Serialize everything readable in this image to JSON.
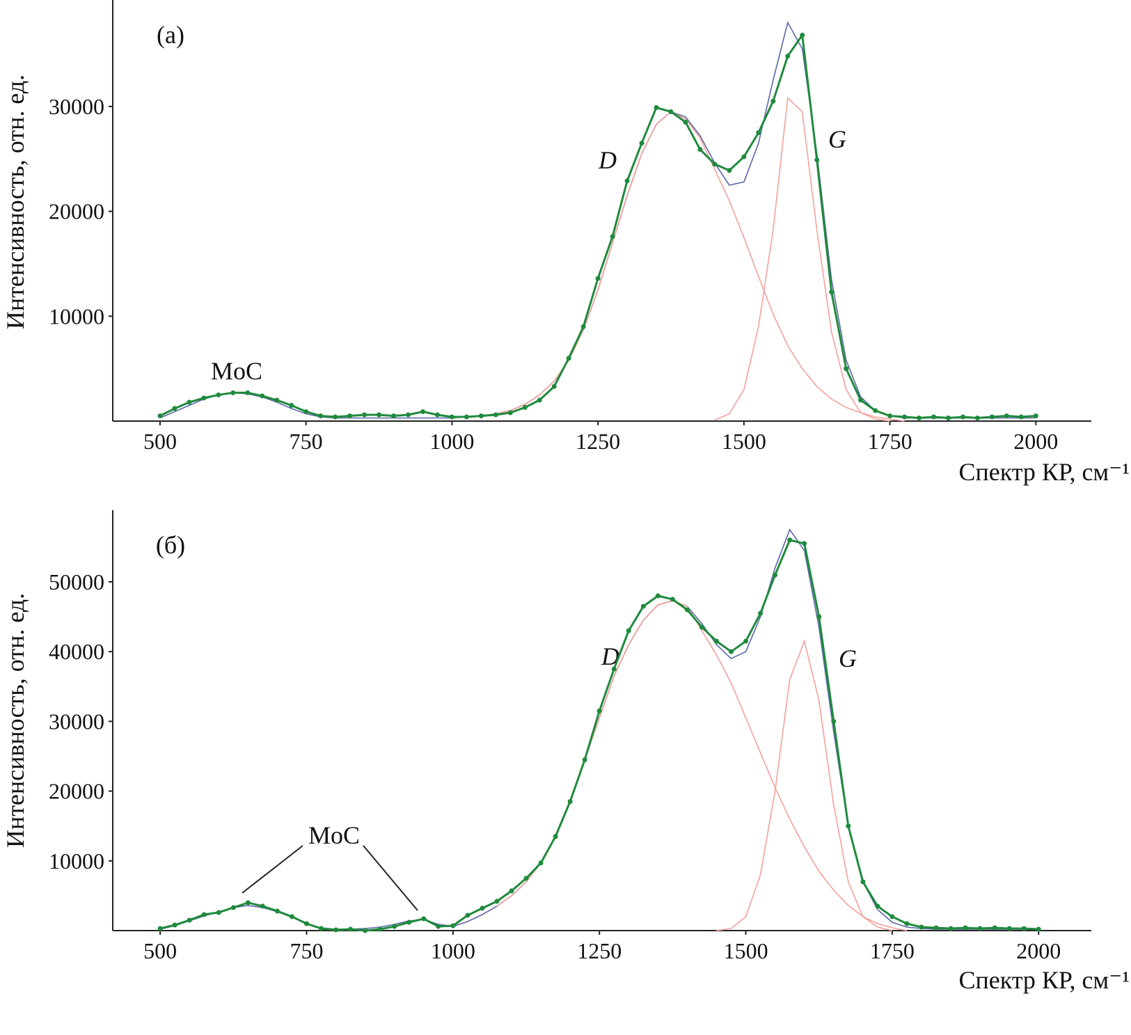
{
  "chart_data": [
    {
      "type": "line",
      "panel_label": "(а)",
      "xlabel": "Спектр КР, см⁻¹",
      "ylabel": "Интенсивность, отн. ед.",
      "annotations": [
        "D",
        "G",
        "MoC"
      ],
      "xlim": [
        419,
        2095
      ],
      "ylim": [
        0,
        40150
      ],
      "xticks": [
        500,
        750,
        1000,
        1250,
        1500,
        1750,
        2000
      ],
      "yticks": [
        10000,
        20000,
        30000
      ],
      "x": [
        500,
        525,
        550,
        575,
        600,
        625,
        650,
        675,
        700,
        725,
        750,
        775,
        800,
        825,
        850,
        875,
        900,
        925,
        950,
        975,
        1000,
        1025,
        1050,
        1075,
        1100,
        1125,
        1150,
        1175,
        1200,
        1225,
        1250,
        1275,
        1300,
        1325,
        1350,
        1375,
        1400,
        1425,
        1450,
        1475,
        1500,
        1525,
        1550,
        1575,
        1600,
        1625,
        1650,
        1675,
        1700,
        1725,
        1750,
        1775,
        1800,
        1825,
        1850,
        1875,
        1900,
        1925,
        1950,
        1975,
        2000
      ],
      "series": [
        {
          "color": "#5a66a8",
          "marker": false,
          "values": [
            300,
            900,
            1500,
            2100,
            2500,
            2700,
            2600,
            2300,
            1800,
            1200,
            700,
            400,
            300,
            300,
            300,
            300,
            300,
            300,
            300,
            300,
            300,
            400,
            500,
            700,
            1000,
            1600,
            2500,
            3800,
            5800,
            8700,
            12500,
            17000,
            21500,
            25500,
            28300,
            29500,
            29000,
            27200,
            24600,
            22500,
            22800,
            26500,
            32500,
            38000,
            35500,
            25500,
            13500,
            5800,
            2300,
            1000,
            500,
            300,
            300,
            300,
            300,
            300,
            300,
            300,
            300,
            300,
            300
          ]
        },
        {
          "color": "#f4a09a",
          "marker": false,
          "values": [
            null,
            null,
            null,
            null,
            null,
            null,
            null,
            null,
            null,
            null,
            null,
            null,
            null,
            null,
            null,
            null,
            null,
            null,
            null,
            null,
            null,
            null,
            null,
            700,
            1000,
            1600,
            2500,
            3800,
            5800,
            8700,
            12500,
            17000,
            21500,
            25500,
            28300,
            29500,
            28800,
            27000,
            24000,
            21000,
            17500,
            13800,
            10200,
            7200,
            5000,
            3300,
            2100,
            1300,
            800,
            400,
            200,
            0,
            null,
            null,
            null,
            null,
            null,
            null,
            null,
            null,
            null
          ]
        },
        {
          "color": "#f4a09a",
          "marker": false,
          "values": [
            null,
            null,
            null,
            null,
            null,
            null,
            null,
            null,
            null,
            null,
            null,
            null,
            null,
            null,
            null,
            null,
            null,
            null,
            null,
            null,
            null,
            null,
            null,
            null,
            null,
            null,
            null,
            null,
            null,
            null,
            null,
            null,
            null,
            null,
            null,
            null,
            null,
            null,
            100,
            700,
            3000,
            9000,
            18200,
            30800,
            29500,
            18200,
            8500,
            3000,
            800,
            200,
            0,
            null,
            null,
            null,
            null,
            null,
            null,
            null,
            null,
            null,
            null
          ]
        },
        {
          "color": "#1f8a3c",
          "marker": true,
          "values": [
            500,
            1200,
            1800,
            2200,
            2500,
            2700,
            2700,
            2400,
            2000,
            1500,
            900,
            500,
            400,
            500,
            600,
            600,
            500,
            600,
            900,
            600,
            400,
            400,
            500,
            600,
            800,
            1300,
            2000,
            3300,
            6000,
            9000,
            13600,
            17600,
            22900,
            26500,
            29900,
            29500,
            28500,
            25900,
            24500,
            23900,
            25200,
            27500,
            30500,
            34800,
            36800,
            24900,
            12300,
            5000,
            2000,
            1000,
            500,
            400,
            300,
            400,
            300,
            400,
            300,
            400,
            500,
            400,
            500
          ]
        }
      ]
    },
    {
      "type": "line",
      "panel_label": "(б)",
      "xlabel": "Спектр КР, см⁻¹",
      "ylabel": "Интенсивность, отн. ед.",
      "annotations": [
        "D",
        "G",
        "MoC"
      ],
      "xlim": [
        419,
        2090
      ],
      "ylim": [
        0,
        60280
      ],
      "xticks": [
        500,
        750,
        1000,
        1250,
        1500,
        1750,
        2000
      ],
      "yticks": [
        10000,
        20000,
        30000,
        40000,
        50000
      ],
      "x": [
        500,
        525,
        550,
        575,
        600,
        625,
        650,
        675,
        700,
        725,
        750,
        775,
        800,
        825,
        850,
        875,
        900,
        925,
        950,
        975,
        1000,
        1025,
        1050,
        1075,
        1100,
        1125,
        1150,
        1175,
        1200,
        1225,
        1250,
        1275,
        1300,
        1325,
        1350,
        1375,
        1400,
        1425,
        1450,
        1475,
        1500,
        1525,
        1550,
        1575,
        1600,
        1625,
        1650,
        1675,
        1700,
        1725,
        1750,
        1775,
        1800,
        1825,
        1850,
        1875,
        1900,
        1925,
        1950,
        1975,
        2000
      ],
      "series": [
        {
          "color": "#5a66a8",
          "marker": false,
          "values": [
            200,
            700,
            1400,
            2100,
            2700,
            3300,
            3600,
            3300,
            2700,
            1900,
            1000,
            400,
            200,
            200,
            300,
            500,
            900,
            1400,
            1600,
            900,
            600,
            1300,
            2300,
            3500,
            5000,
            7000,
            9700,
            13500,
            18500,
            24500,
            30500,
            36500,
            41000,
            44500,
            46700,
            47300,
            46500,
            44000,
            41000,
            39000,
            40000,
            45000,
            52000,
            57500,
            54500,
            43500,
            28500,
            15000,
            7000,
            3000,
            1200,
            500,
            300,
            200,
            200,
            200,
            200,
            200,
            200,
            200,
            200
          ]
        },
        {
          "color": "#f4a09a",
          "marker": false,
          "values": [
            null,
            null,
            null,
            null,
            null,
            null,
            null,
            null,
            null,
            null,
            null,
            null,
            null,
            null,
            null,
            null,
            null,
            null,
            null,
            null,
            null,
            null,
            null,
            3500,
            5000,
            7000,
            9700,
            13500,
            18500,
            24500,
            30500,
            36500,
            41000,
            44500,
            46700,
            47300,
            46500,
            43000,
            39500,
            35500,
            30500,
            25500,
            20500,
            16000,
            12000,
            8500,
            5800,
            3600,
            2000,
            1000,
            400,
            0,
            null,
            null,
            null,
            null,
            null,
            null,
            null,
            null,
            null
          ]
        },
        {
          "color": "#f4a09a",
          "marker": false,
          "values": [
            null,
            null,
            null,
            null,
            null,
            null,
            null,
            null,
            null,
            null,
            null,
            null,
            null,
            null,
            null,
            null,
            null,
            null,
            null,
            null,
            null,
            null,
            null,
            null,
            null,
            null,
            null,
            null,
            null,
            null,
            null,
            null,
            null,
            null,
            null,
            null,
            null,
            null,
            0,
            300,
            2000,
            8000,
            20000,
            36000,
            41500,
            33000,
            18000,
            7000,
            2000,
            500,
            0,
            null,
            null,
            null,
            null,
            null,
            null,
            null,
            null,
            null,
            null
          ]
        },
        {
          "color": "#1f8a3c",
          "marker": true,
          "values": [
            300,
            800,
            1500,
            2300,
            2600,
            3300,
            4000,
            3500,
            2800,
            2000,
            1000,
            300,
            100,
            200,
            0,
            200,
            600,
            1200,
            1700,
            600,
            700,
            2200,
            3200,
            4200,
            5700,
            7500,
            9700,
            13500,
            18500,
            24500,
            31500,
            37500,
            43000,
            46500,
            48000,
            47500,
            46000,
            43500,
            41500,
            40000,
            41500,
            45500,
            51000,
            56000,
            55500,
            45000,
            30000,
            15000,
            7000,
            3500,
            2000,
            1000,
            500,
            400,
            300,
            400,
            300,
            400,
            300,
            300,
            200
          ]
        }
      ]
    }
  ]
}
